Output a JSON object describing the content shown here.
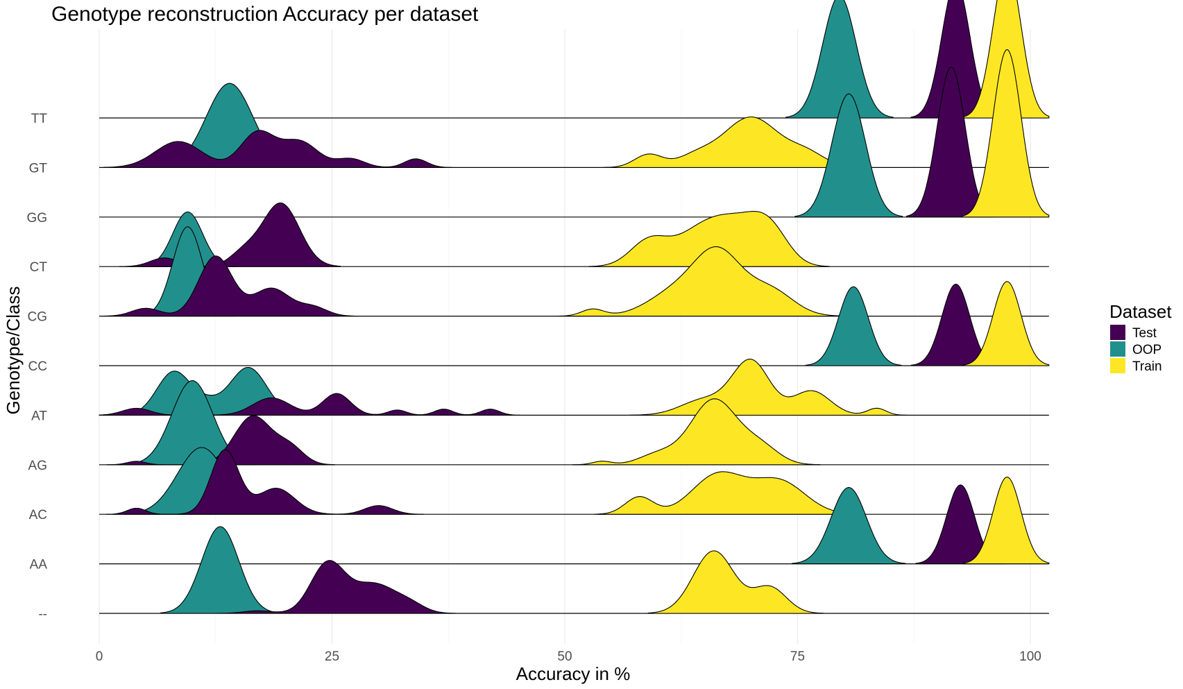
{
  "chart_data": {
    "type": "ridgeline",
    "title": "Genotype reconstruction Accuracy per dataset",
    "xlabel": "Accuracy in %",
    "ylabel": "Genotype/Class",
    "xlim": [
      0,
      100
    ],
    "x_ticks": [
      0,
      25,
      50,
      75,
      100
    ],
    "grid": "vertical",
    "legend": {
      "title": "Dataset",
      "position": "right"
    },
    "series_order": [
      "OOP",
      "Test",
      "Train"
    ],
    "series": [
      {
        "name": "Test",
        "color": "#440154"
      },
      {
        "name": "OOP",
        "color": "#21908C"
      },
      {
        "name": "Train",
        "color": "#FDE725"
      }
    ],
    "categories": [
      "--",
      "AA",
      "AC",
      "AG",
      "AT",
      "CC",
      "CG",
      "CT",
      "GG",
      "GT",
      "TT"
    ],
    "ridges": {
      "--": {
        "Test": [
          [
            17,
            0.03,
            1.5
          ],
          [
            24.5,
            0.56,
            1.8
          ],
          [
            29.5,
            0.34,
            2.5
          ],
          [
            33.5,
            0.07,
            1.5
          ]
        ],
        "OOP": [
          [
            13,
            1.0,
            2.0
          ]
        ],
        "Train": [
          [
            66,
            0.72,
            2.2
          ],
          [
            72,
            0.3,
            1.8
          ]
        ]
      },
      "AA": {
        "Test": [
          [
            92.5,
            0.91,
            1.5
          ]
        ],
        "OOP": [
          [
            80.5,
            0.88,
            1.9
          ]
        ],
        "Train": [
          [
            97.5,
            1.0,
            1.5
          ]
        ]
      },
      "AC": {
        "Test": [
          [
            4,
            0.07,
            1
          ],
          [
            13.5,
            0.74,
            1.5
          ],
          [
            19,
            0.3,
            2
          ],
          [
            30,
            0.1,
            1.5
          ]
        ],
        "OOP": [
          [
            11,
            0.77,
            2.6
          ]
        ],
        "Train": [
          [
            58,
            0.2,
            1.5
          ],
          [
            66.5,
            0.46,
            2.8
          ],
          [
            73,
            0.38,
            2.8
          ]
        ]
      },
      "AG": {
        "Test": [
          [
            4,
            0.04,
            1
          ],
          [
            16.5,
            0.56,
            2
          ],
          [
            20.5,
            0.19,
            1.5
          ]
        ],
        "OOP": [
          [
            10,
            0.97,
            2.2
          ]
        ],
        "Train": [
          [
            54,
            0.04,
            1
          ],
          [
            60,
            0.12,
            2
          ],
          [
            66,
            0.75,
            2.5
          ],
          [
            71,
            0.2,
            2
          ]
        ]
      },
      "AT": {
        "Test": [
          [
            4,
            0.08,
            1.5
          ],
          [
            18.5,
            0.2,
            2
          ],
          [
            25.5,
            0.25,
            1.5
          ],
          [
            32,
            0.06,
            1
          ],
          [
            37,
            0.07,
            1
          ],
          [
            42,
            0.07,
            1
          ]
        ],
        "OOP": [
          [
            8,
            0.5,
            1.8
          ],
          [
            16,
            0.55,
            2.0
          ],
          [
            11.5,
            0.12,
            1.5
          ]
        ],
        "Train": [
          [
            65,
            0.18,
            2.5
          ],
          [
            70,
            0.62,
            2
          ],
          [
            76.5,
            0.28,
            2
          ],
          [
            83.5,
            0.08,
            1
          ]
        ]
      },
      "CC": {
        "Test": [
          [
            92,
            0.94,
            1.5
          ]
        ],
        "OOP": [
          [
            81,
            0.91,
            1.6
          ]
        ],
        "Train": [
          [
            97.5,
            0.97,
            1.5
          ]
        ]
      },
      "CG": {
        "Test": [
          [
            5,
            0.09,
            1.5
          ],
          [
            12.5,
            0.69,
            1.8
          ],
          [
            18.5,
            0.32,
            2
          ],
          [
            23,
            0.1,
            1.5
          ]
        ],
        "OOP": [
          [
            9.5,
            1.03,
            1.6
          ]
        ],
        "Train": [
          [
            53,
            0.08,
            1.2
          ],
          [
            62,
            0.28,
            3
          ],
          [
            66.5,
            0.68,
            2.5
          ],
          [
            72,
            0.3,
            2.5
          ]
        ]
      },
      "CT": {
        "Test": [
          [
            7,
            0.1,
            1.5
          ],
          [
            19.5,
            0.73,
            2
          ],
          [
            15.5,
            0.15,
            1.5
          ]
        ],
        "OOP": [
          [
            9.5,
            0.63,
            1.6
          ]
        ],
        "Train": [
          [
            59,
            0.28,
            2
          ],
          [
            65,
            0.44,
            3
          ],
          [
            69,
            0.32,
            2.5
          ],
          [
            72,
            0.38,
            2
          ]
        ]
      },
      "GG": {
        "Test": [
          [
            91.5,
            1.73,
            1.5
          ]
        ],
        "OOP": [
          [
            80.5,
            1.42,
            1.8
          ]
        ],
        "Train": [
          [
            97.5,
            1.93,
            1.5
          ]
        ]
      },
      "GT": {
        "Test": [
          [
            8.5,
            0.3,
            2.5
          ],
          [
            17,
            0.4,
            1.8
          ],
          [
            21.5,
            0.3,
            2
          ],
          [
            27,
            0.1,
            1.5
          ],
          [
            34,
            0.1,
            1.2
          ]
        ],
        "OOP": [
          [
            14,
            0.97,
            2.5
          ]
        ],
        "Train": [
          [
            59,
            0.15,
            1.5
          ],
          [
            64,
            0.12,
            2
          ],
          [
            70,
            0.58,
            3
          ],
          [
            76,
            0.15,
            2
          ]
        ]
      },
      "TT": {
        "Test": [
          [
            92,
            1.57,
            1.5
          ]
        ],
        "OOP": [
          [
            79.5,
            1.41,
            1.8
          ]
        ],
        "Train": [
          [
            97.5,
            1.76,
            1.5
          ]
        ]
      }
    }
  }
}
